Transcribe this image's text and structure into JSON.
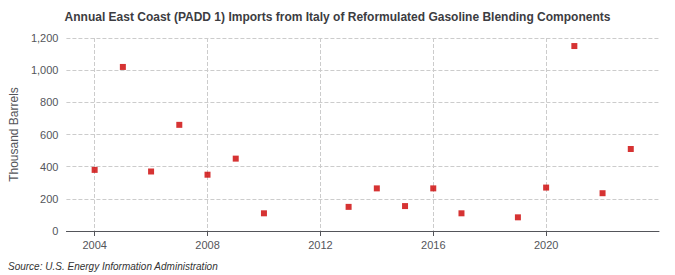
{
  "chart_data": {
    "type": "scatter",
    "title": "Annual East Coast (PADD 1) Imports from Italy of Reformulated Gasoline Blending Components",
    "ylabel": "Thousand Barrels",
    "annotations": [
      "Source: U.S. Energy Information Administration"
    ],
    "x": [
      2004,
      2005,
      2006,
      2007,
      2008,
      2009,
      2010,
      2013,
      2014,
      2015,
      2016,
      2017,
      2019,
      2020,
      2021,
      2022,
      2023
    ],
    "values": [
      380,
      1020,
      370,
      660,
      350,
      450,
      110,
      150,
      265,
      155,
      265,
      110,
      85,
      270,
      1150,
      235,
      510
    ],
    "color": "#cc0000",
    "marker": "square",
    "xlim": [
      2003.0,
      2024.0
    ],
    "xticks": [
      2004,
      2008,
      2012,
      2016,
      2020
    ],
    "ylim": [
      0,
      1200
    ],
    "yticks": [
      0,
      200,
      400,
      600,
      {
        "value": 800,
        "label": "800"
      },
      {
        "value": 1000,
        "label": "1,000"
      },
      {
        "value": 1200,
        "label": "1,200"
      }
    ],
    "grid": true
  }
}
